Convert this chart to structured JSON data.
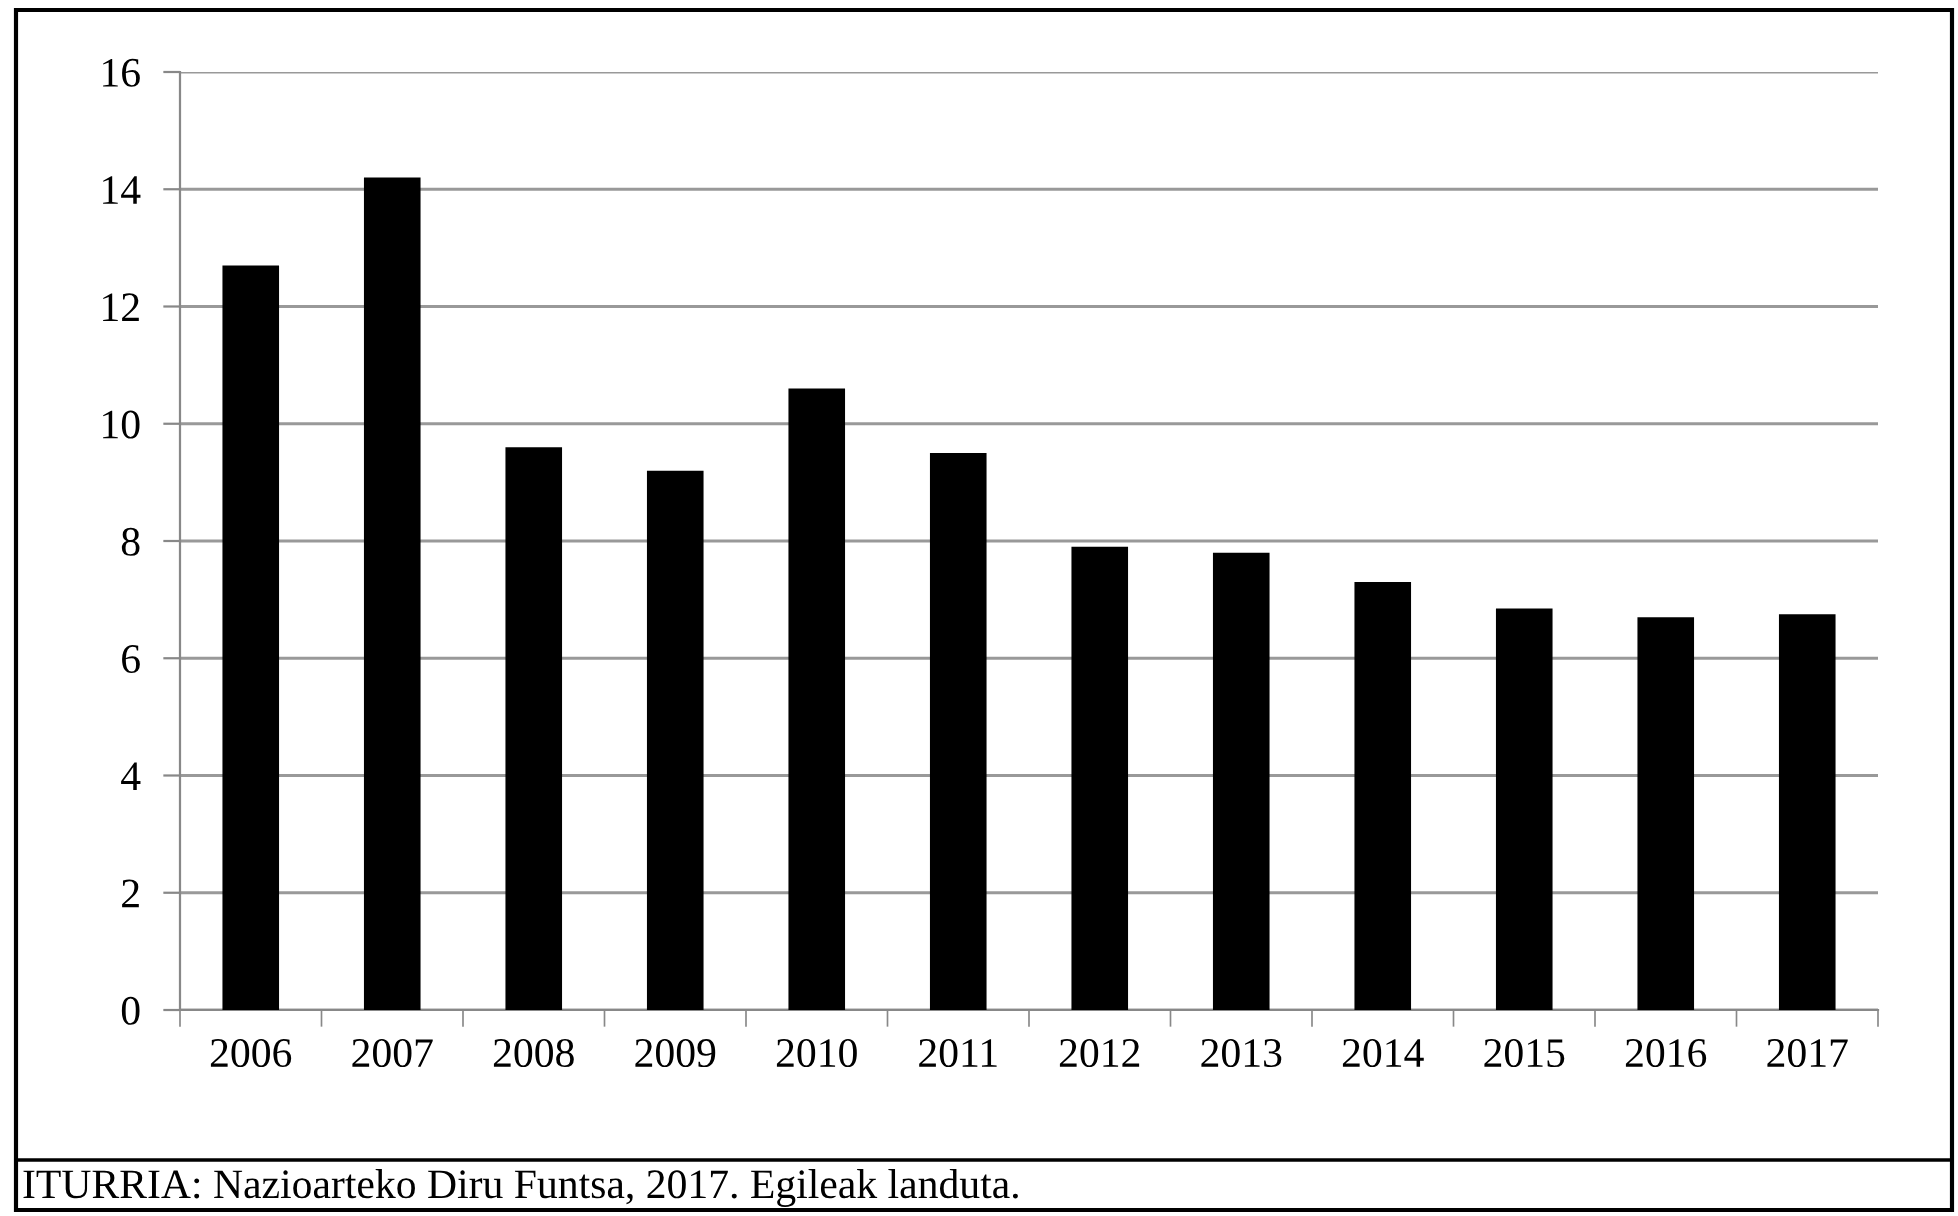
{
  "chart_data": {
    "type": "bar",
    "categories": [
      "2006",
      "2007",
      "2008",
      "2009",
      "2010",
      "2011",
      "2012",
      "2013",
      "2014",
      "2015",
      "2016",
      "2017"
    ],
    "values": [
      12.7,
      14.2,
      9.6,
      9.2,
      10.6,
      9.5,
      7.9,
      7.8,
      7.3,
      6.85,
      6.7,
      6.75
    ],
    "color": "#000000",
    "ylim": [
      0,
      16
    ],
    "yticks": [
      0,
      2,
      4,
      6,
      8,
      10,
      12,
      14,
      16
    ],
    "grid": "y",
    "annotations": [
      "ITURRIA: Nazioarteko Diru Funtsa, 2017. Egileak landuta."
    ]
  }
}
